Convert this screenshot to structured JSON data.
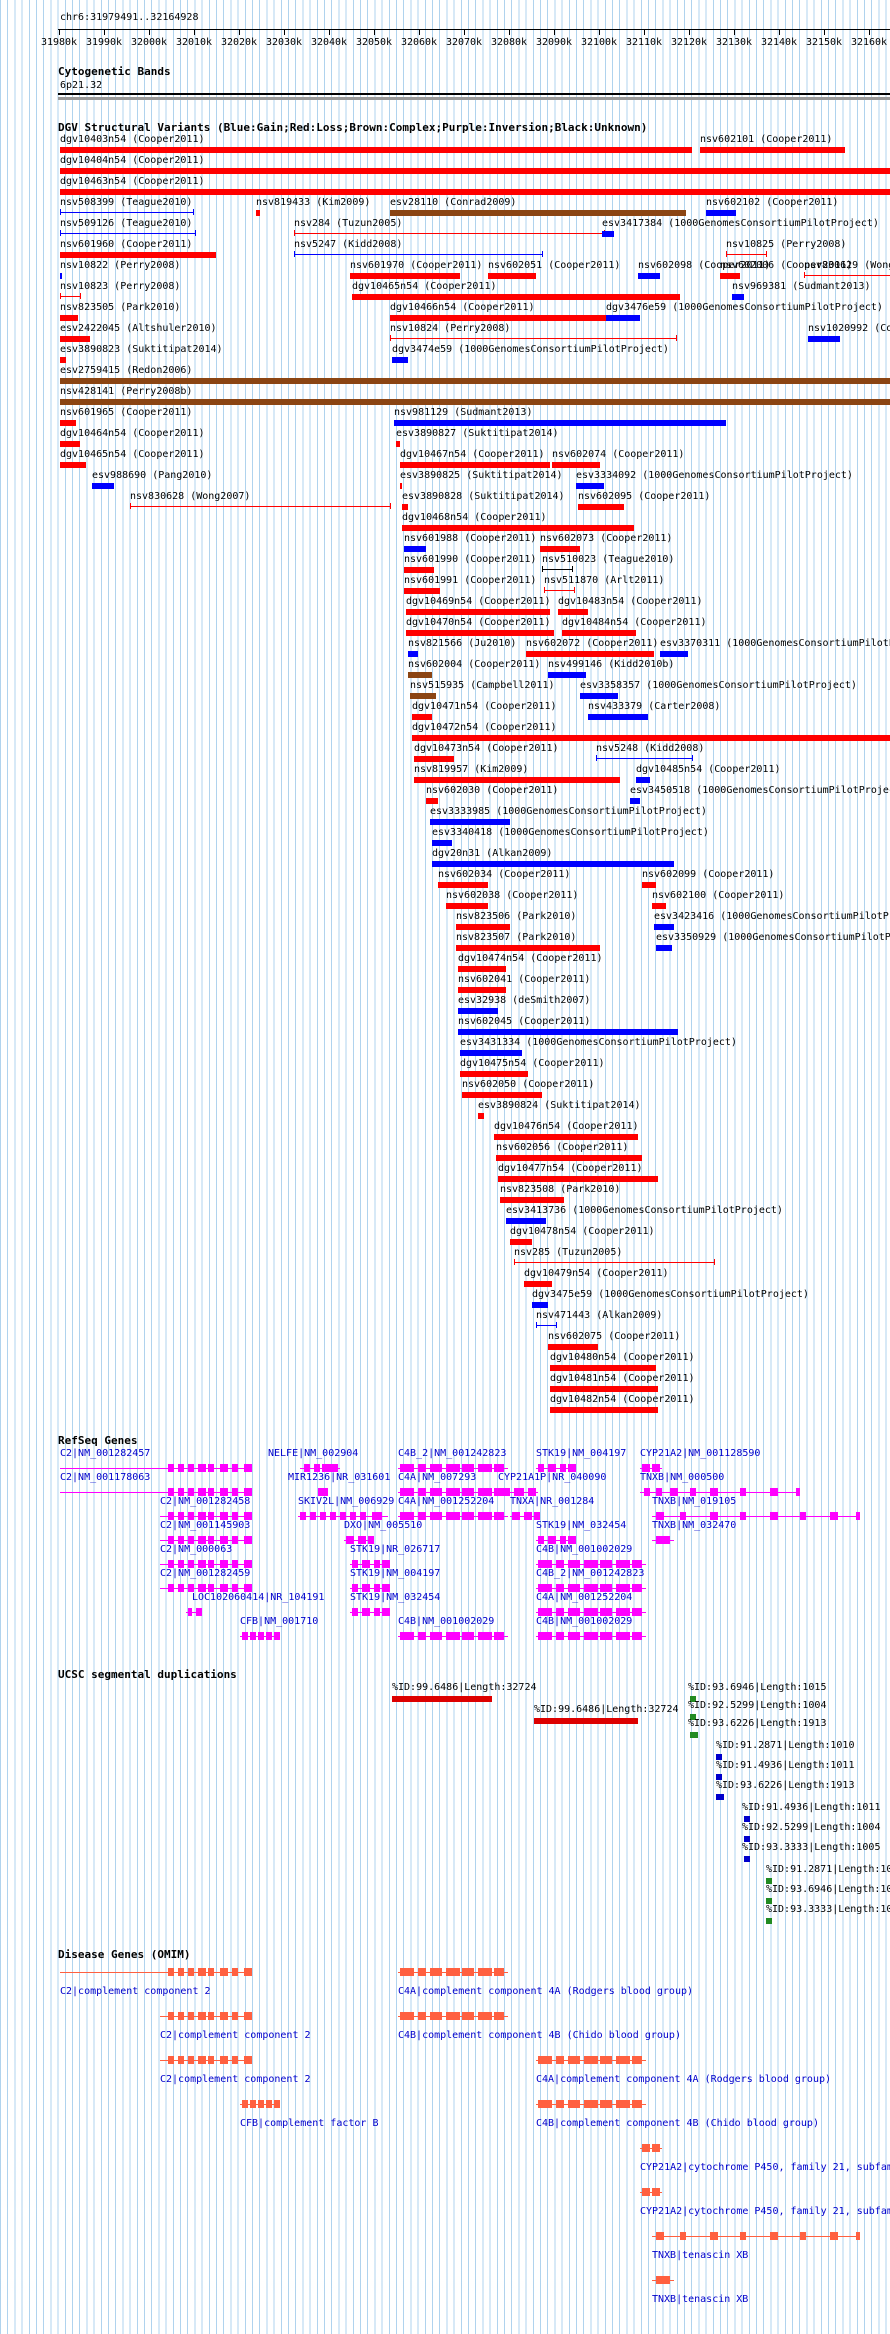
{
  "title": "chr6:31979491..32164928",
  "ruler": {
    "ticks": [
      "31980k",
      "31990k",
      "32000k",
      "32010k",
      "32020k",
      "32030k",
      "32040k",
      "32050k",
      "32060k",
      "32070k",
      "32080k",
      "32090k",
      "32100k",
      "32110k",
      "32120k",
      "32130k",
      "32140k",
      "32150k",
      "32160k"
    ]
  },
  "cytoband": {
    "header": "Cytogenetic Bands",
    "band": "6p21.32"
  },
  "dgv": {
    "header": "DGV Structural Variants (Blue:Gain;Red:Loss;Brown:Complex;Purple:Inversion;Black:Unknown)",
    "colors": {
      "gain": "#0000ff",
      "loss": "#ff0000",
      "complex": "#8b4513",
      "unknown": "#000000"
    }
  },
  "refseq": {
    "header": "RefSeq Genes",
    "color": "#ff00ff"
  },
  "segdup": {
    "header": "UCSC segmental duplications"
  },
  "omim": {
    "header": "Disease Genes (OMIM)",
    "color": "#ff6040"
  }
}
